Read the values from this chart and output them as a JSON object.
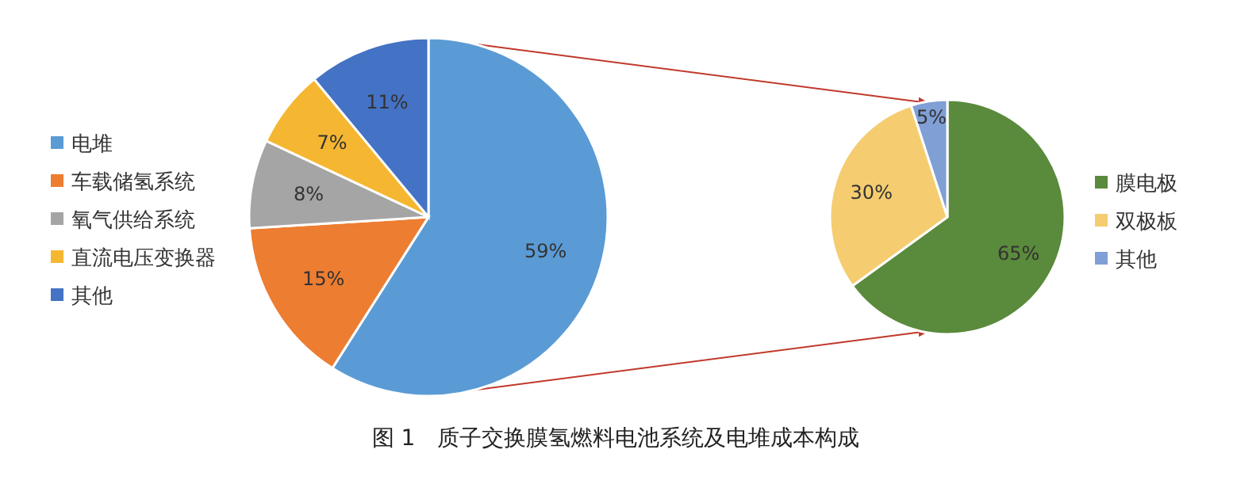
{
  "chart_data": [
    {
      "type": "pie",
      "title": "图 1　质子交换膜氢燃料电池系统及电堆成本构成",
      "categories": [
        "电堆",
        "车载储氢系统",
        "氧气供给系统",
        "直流电压变换器",
        "其他"
      ],
      "values": [
        59,
        15,
        8,
        7,
        11
      ],
      "value_labels": [
        "59%",
        "15%",
        "8%",
        "7%",
        "11%"
      ],
      "colors": [
        "#5b9bd5",
        "#ed7d31",
        "#a5a5a5",
        "#f5b731",
        "#4472c4"
      ],
      "legend": "left"
    },
    {
      "type": "pie",
      "categories": [
        "膜电极",
        "双极板",
        "其他"
      ],
      "values": [
        65,
        30,
        5
      ],
      "value_labels": [
        "65%",
        "30%",
        "5%"
      ],
      "colors": [
        "#5a8a3c",
        "#f5cd70",
        "#7f9fd5"
      ],
      "legend": "right"
    }
  ]
}
